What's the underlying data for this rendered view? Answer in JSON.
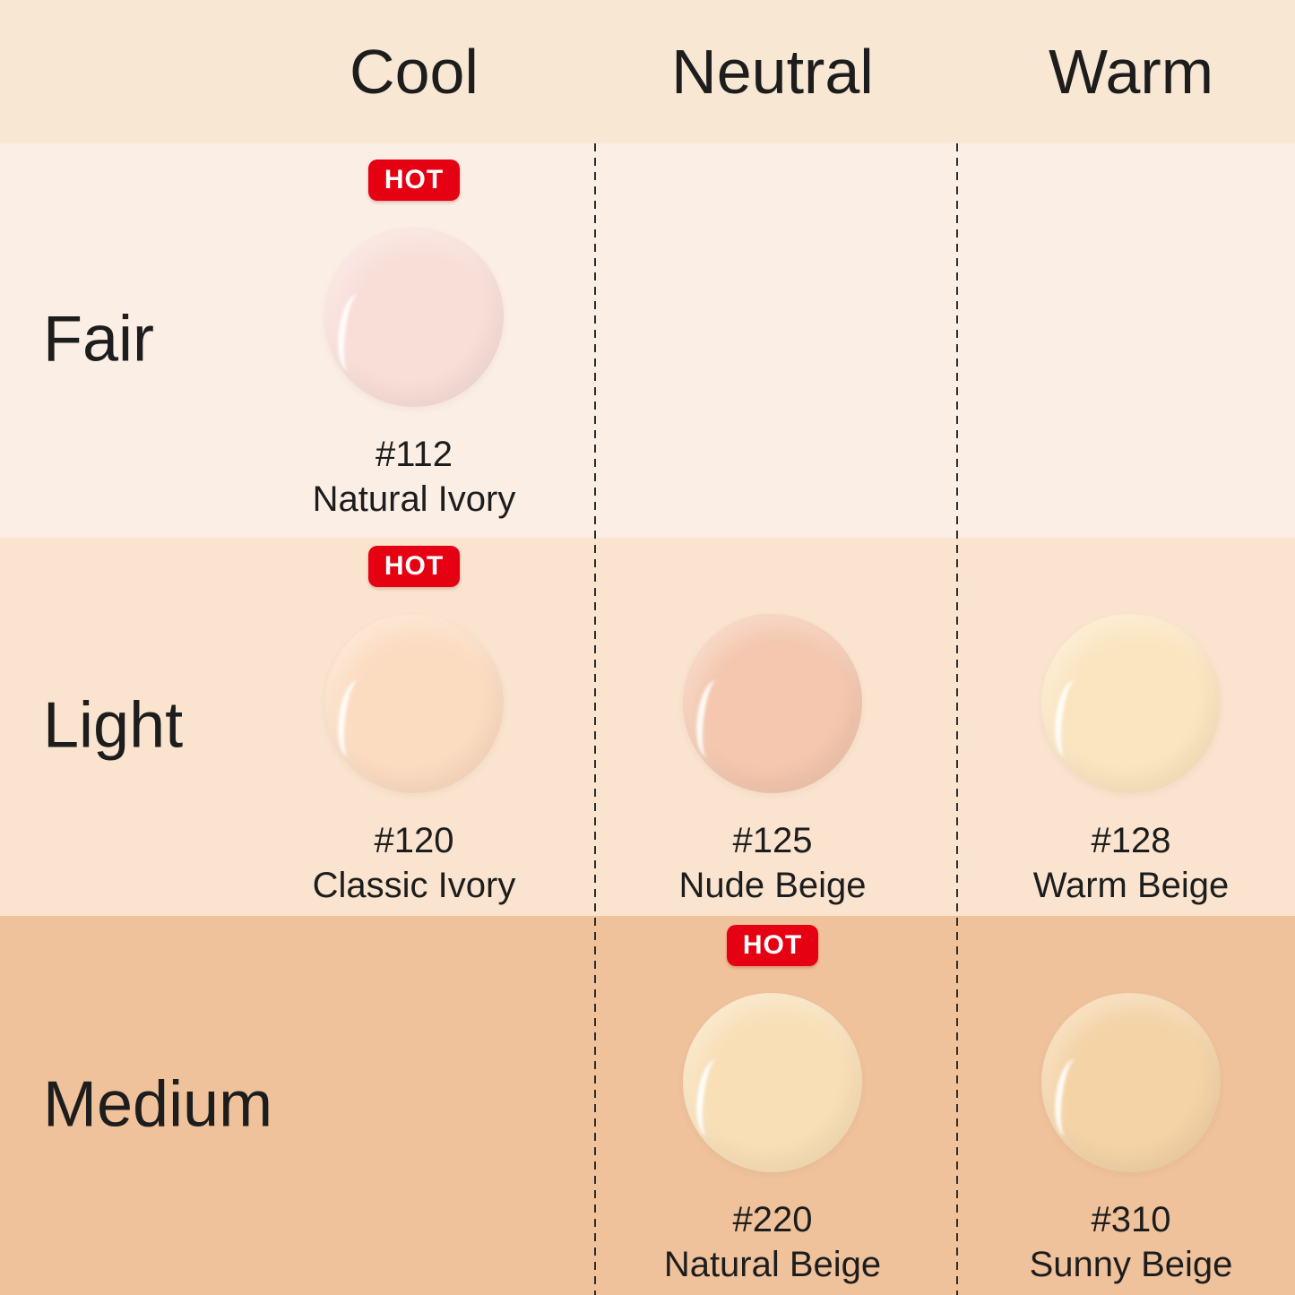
{
  "palette": {
    "header_bg": "#f8e7d2",
    "fair_bg": "#fbeee5",
    "light_bg": "#fae4cf",
    "medium_bg": "#efc29c",
    "divider": "#2e2e2e",
    "text": "#1d1d1d",
    "hot_red": "#e50012",
    "hot_text": "#ffffff"
  },
  "hot_badge": {
    "label": "HOT"
  },
  "columns": [
    {
      "id": "cool",
      "label": "Cool"
    },
    {
      "id": "neutral",
      "label": "Neutral"
    },
    {
      "id": "warm",
      "label": "Warm"
    }
  ],
  "rows": [
    {
      "id": "fair",
      "label": "Fair",
      "bg": "#fbeee5",
      "shades": {
        "cool": {
          "number": "#112",
          "name": "Natural Ivory",
          "hot": true,
          "color": "#f9ded8"
        }
      }
    },
    {
      "id": "light",
      "label": "Light",
      "bg": "#fae4cf",
      "shades": {
        "cool": {
          "number": "#120",
          "name": "Classic Ivory",
          "hot": true,
          "color": "#fcdcc1"
        },
        "neutral": {
          "number": "#125",
          "name": "Nude Beige",
          "hot": false,
          "color": "#f4c7ae"
        },
        "warm": {
          "number": "#128",
          "name": "Warm Beige",
          "hot": false,
          "color": "#fbe5c0"
        }
      }
    },
    {
      "id": "medium",
      "label": "Medium",
      "bg": "#efc29c",
      "shades": {
        "neutral": {
          "number": "#220",
          "name": "Natural Beige",
          "hot": true,
          "color": "#f8dfb6"
        },
        "warm": {
          "number": "#310",
          "name": "Sunny Beige",
          "hot": false,
          "color": "#f4d3a6"
        }
      }
    }
  ]
}
